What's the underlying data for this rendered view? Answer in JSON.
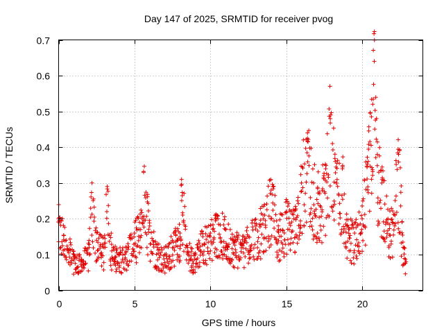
{
  "chart_data": {
    "type": "scatter",
    "title": "Day 147 of 2025, SRMTID for receiver pvog",
    "xlabel": "GPS time / hours",
    "ylabel": "SRMTID / TECUs",
    "xlim": [
      0,
      24
    ],
    "ylim": [
      0,
      0.7
    ],
    "xticks": [
      0,
      5,
      10,
      15,
      20
    ],
    "yticks": [
      0,
      0.1,
      0.2,
      0.3,
      0.4,
      0.5,
      0.6,
      0.7
    ],
    "xtick_labels": [
      "0",
      "5",
      "10",
      "15",
      "20"
    ],
    "ytick_labels": [
      "0",
      "0.1",
      "0.2",
      "0.3",
      "0.4",
      "0.5",
      "0.6",
      "0.7"
    ],
    "grid": true,
    "marker": "+",
    "marker_color": "#e00000",
    "series": [
      {
        "name": "SRMTID",
        "x_range": [
          0.0,
          22.9
        ],
        "sample_step_hours": 0.05,
        "envelope_note": "typical level ~0.1-0.2 TECU, spikes near 3.2h (0.29), 5.5h (0.33), 8.1h (0.31), 16.4h (0.44), 17.9h (0.48), 20.8h (0.64), 22.4h (0.38)",
        "representative": {
          "x": [
            0.0,
            0.5,
            1.0,
            1.5,
            2.0,
            2.2,
            2.5,
            3.0,
            3.2,
            3.5,
            4.0,
            4.5,
            5.0,
            5.5,
            5.6,
            6.0,
            6.5,
            7.0,
            7.5,
            8.0,
            8.1,
            8.5,
            9.0,
            9.5,
            10.0,
            10.5,
            11.0,
            11.5,
            12.0,
            12.5,
            13.0,
            13.5,
            14.0,
            14.5,
            15.0,
            15.5,
            16.0,
            16.4,
            16.8,
            17.2,
            17.6,
            17.9,
            18.3,
            18.7,
            19.0,
            19.5,
            20.0,
            20.4,
            20.7,
            20.8,
            21.0,
            21.3,
            21.7,
            22.0,
            22.4,
            22.7,
            22.9
          ],
          "y": [
            0.2,
            0.14,
            0.1,
            0.08,
            0.12,
            0.3,
            0.14,
            0.12,
            0.29,
            0.11,
            0.1,
            0.12,
            0.16,
            0.2,
            0.33,
            0.18,
            0.12,
            0.1,
            0.14,
            0.16,
            0.31,
            0.12,
            0.1,
            0.15,
            0.16,
            0.2,
            0.17,
            0.14,
            0.13,
            0.15,
            0.18,
            0.2,
            0.28,
            0.17,
            0.22,
            0.2,
            0.3,
            0.44,
            0.3,
            0.27,
            0.34,
            0.48,
            0.3,
            0.34,
            0.18,
            0.16,
            0.2,
            0.36,
            0.52,
            0.64,
            0.38,
            0.3,
            0.2,
            0.19,
            0.38,
            0.12,
            0.08
          ]
        }
      }
    ]
  }
}
